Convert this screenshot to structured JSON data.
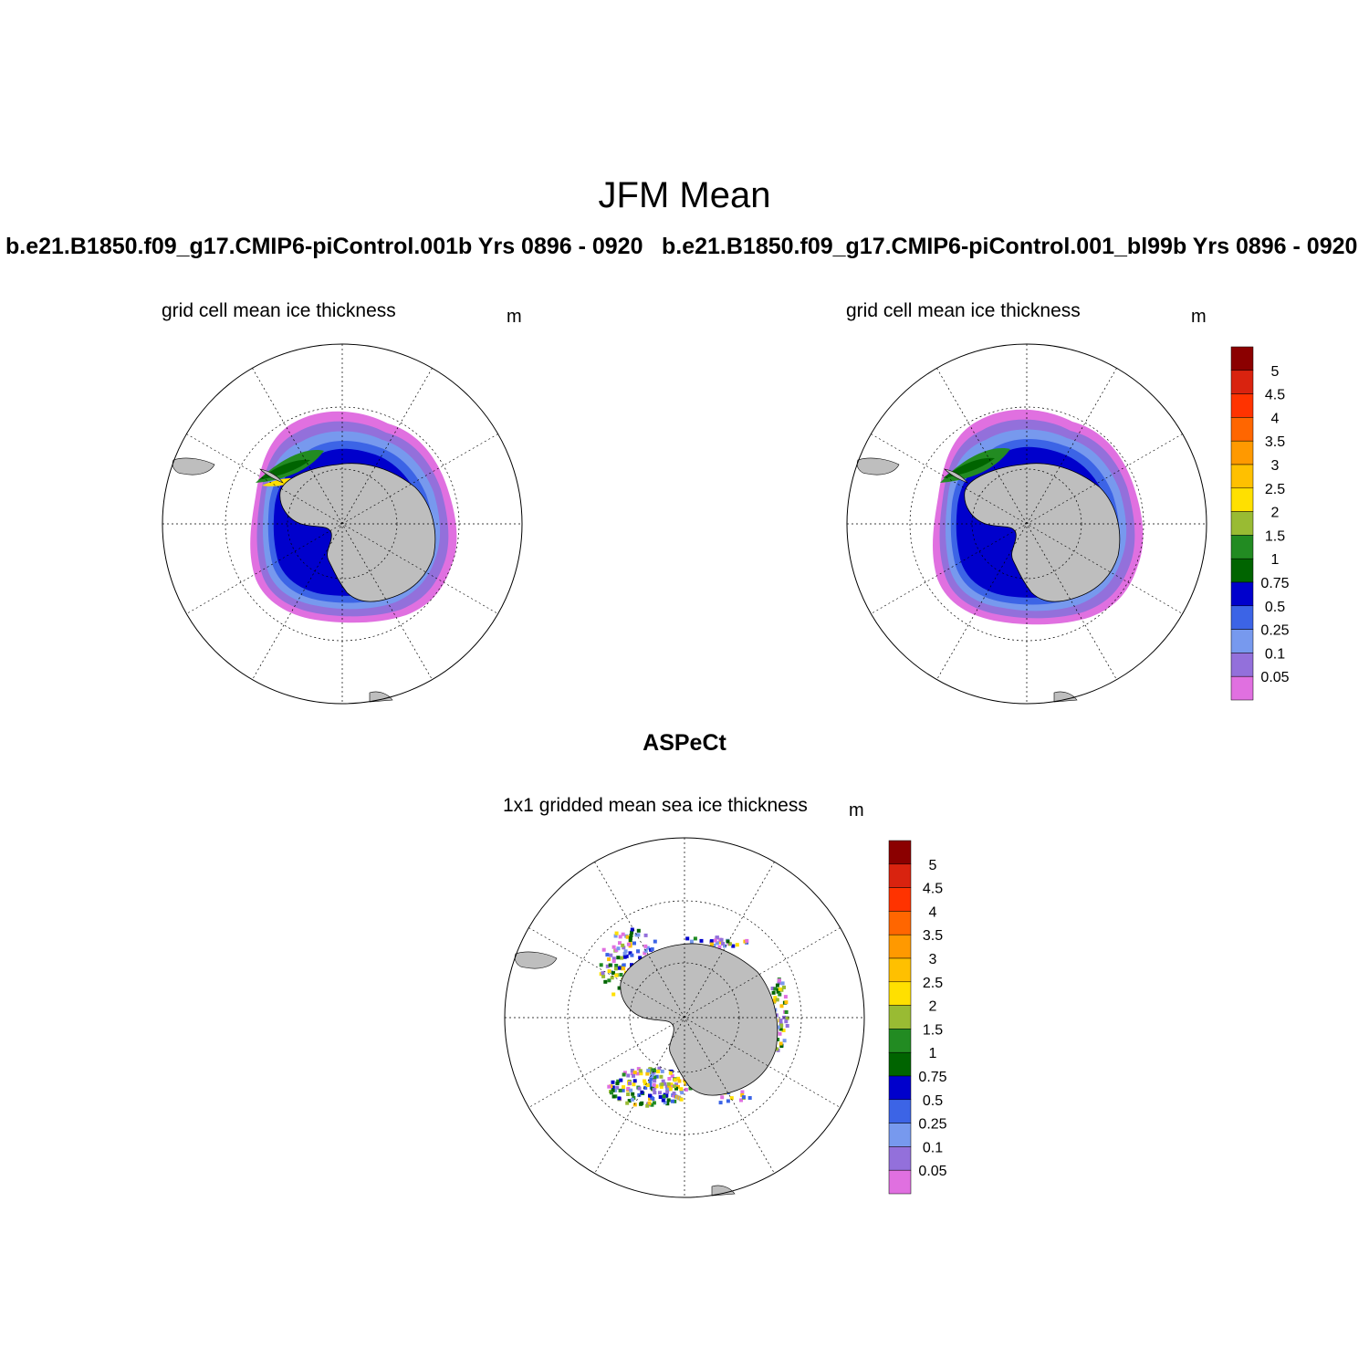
{
  "title": "JFM Mean",
  "panels": [
    {
      "case_title": "b.e21.B1850.f09_g17.CMIP6-piControl.001b  Yrs 0896 - 0920",
      "variable": "grid cell mean ice thickness",
      "units": "m"
    },
    {
      "case_title": "b.e21.B1850.f09_g17.CMIP6-piControl.001_bl99b  Yrs 0896 - 0920",
      "variable": "grid cell mean ice thickness",
      "units": "m"
    },
    {
      "case_title": "ASPeCt",
      "variable": "1x1 gridded mean sea ice thickness",
      "units": "m"
    }
  ],
  "colorbar": {
    "labels": [
      "5",
      "4.5",
      "4",
      "3.5",
      "3",
      "2.5",
      "2",
      "1.5",
      "1",
      "0.75",
      "0.5",
      "0.25",
      "0.1",
      "0.05"
    ],
    "colors_top_to_bottom": [
      "#8b0000",
      "#d9230f",
      "#ff3300",
      "#ff6600",
      "#ff9900",
      "#ffc000",
      "#ffe000",
      "#99bb33",
      "#228b22",
      "#006400",
      "#0000cc",
      "#3c64e6",
      "#7799ee",
      "#9370db",
      "#e070e0"
    ]
  },
  "map_colors": {
    "land": "#bebebe",
    "pink": "#e070e0",
    "purple": "#9370db",
    "lightblue": "#7799ee",
    "blue": "#3c64e6",
    "darkblue": "#0000cc",
    "darkgreen": "#006400",
    "green": "#228b22",
    "olive": "#99bb33",
    "yellow": "#ffe000"
  },
  "chart_data": {
    "type": "map",
    "projection": "south polar stereographic",
    "season": "JFM",
    "contour_levels": [
      0.05,
      0.1,
      0.25,
      0.5,
      0.75,
      1,
      1.5,
      2,
      2.5,
      3,
      3.5,
      4,
      4.5,
      5
    ],
    "units": "m",
    "grid_meridians_deg": 30
  }
}
